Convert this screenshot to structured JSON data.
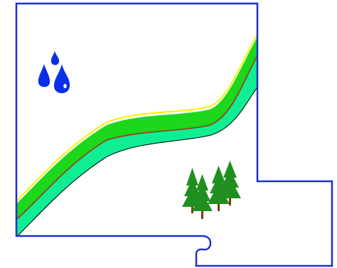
{
  "map": {
    "features": [
      "boundary",
      "river",
      "water-drops-icon",
      "pine-trees-icon"
    ]
  },
  "colors": {
    "boundary": "#1d2fd6",
    "river_edge": "#f4f400",
    "river_main": "#1cd71c",
    "river_lower": "#10ee94",
    "river_center": "#8b4a1a",
    "river_shadow": "#000000",
    "drops": "#0b2ee8",
    "tree_foliage": "#208f20",
    "tree_trunk": "#7a3a00"
  }
}
